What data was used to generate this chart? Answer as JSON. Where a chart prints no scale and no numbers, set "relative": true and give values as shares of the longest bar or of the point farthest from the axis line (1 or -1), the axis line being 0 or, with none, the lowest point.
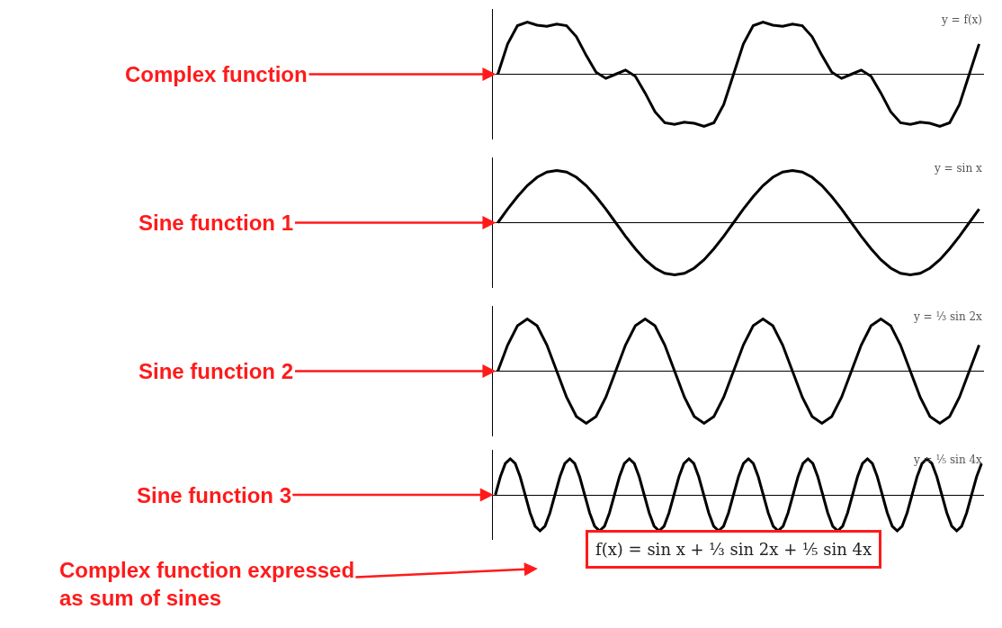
{
  "chart_data": [
    {
      "type": "line",
      "title": "y = f(x)",
      "relative": true,
      "categories": [
        null,
        null,
        null,
        null,
        null,
        null,
        null,
        null,
        null,
        null,
        null,
        null,
        null,
        null,
        null,
        null,
        null,
        null,
        null,
        null,
        null,
        null,
        null,
        null,
        null,
        null,
        null,
        null,
        null,
        null,
        null,
        null,
        null,
        null,
        null,
        null,
        null,
        null,
        null,
        null,
        null,
        null,
        null,
        null,
        null,
        null,
        null,
        null,
        null,
        null
      ],
      "series": [
        {
          "color": "#000000",
          "values": [
            0,
            0.58,
            0.93,
            1,
            0.94,
            0.92,
            0.96,
            0.93,
            0.72,
            0.36,
            0.04,
            -0.08,
            0,
            0.08,
            -0.04,
            -0.36,
            -0.72,
            -0.93,
            -0.96,
            -0.92,
            -0.94,
            -1,
            -0.93,
            -0.58,
            0,
            0.58,
            0.93,
            1,
            0.94,
            0.92,
            0.96,
            0.93,
            0.72,
            0.36,
            0.04,
            -0.08,
            0,
            0.08,
            -0.04,
            -0.36,
            -0.72,
            -0.93,
            -0.96,
            -0.92,
            -0.94,
            -1,
            -0.93,
            -0.58,
            0,
            0.58
          ]
        }
      ],
      "annotations": [
        "Complex function"
      ]
    },
    {
      "type": "line",
      "title": "y = sin x",
      "relative": true,
      "categories": [
        null,
        null,
        null,
        null,
        null,
        null,
        null,
        null,
        null,
        null,
        null,
        null,
        null,
        null,
        null,
        null,
        null,
        null,
        null,
        null,
        null,
        null,
        null,
        null,
        null,
        null,
        null,
        null,
        null,
        null,
        null,
        null,
        null,
        null,
        null,
        null,
        null,
        null,
        null,
        null,
        null,
        null,
        null,
        null,
        null,
        null,
        null,
        null,
        null,
        null
      ],
      "series": [
        {
          "color": "#000000",
          "values": [
            0,
            0.26,
            0.5,
            0.71,
            0.87,
            0.97,
            1,
            0.97,
            0.87,
            0.71,
            0.5,
            0.26,
            0,
            -0.26,
            -0.5,
            -0.71,
            -0.87,
            -0.97,
            -1,
            -0.97,
            -0.87,
            -0.71,
            -0.5,
            -0.26,
            0,
            0.26,
            0.5,
            0.71,
            0.87,
            0.97,
            1,
            0.97,
            0.87,
            0.71,
            0.5,
            0.26,
            0,
            -0.26,
            -0.5,
            -0.71,
            -0.87,
            -0.97,
            -1,
            -0.97,
            -0.87,
            -0.71,
            -0.5,
            -0.26,
            0,
            0.26
          ]
        }
      ],
      "annotations": [
        "Sine function 1"
      ]
    },
    {
      "type": "line",
      "title": "y = ⅓ sin 2x",
      "relative": true,
      "categories": [
        null,
        null,
        null,
        null,
        null,
        null,
        null,
        null,
        null,
        null,
        null,
        null,
        null,
        null,
        null,
        null,
        null,
        null,
        null,
        null,
        null,
        null,
        null,
        null,
        null,
        null,
        null,
        null,
        null,
        null,
        null,
        null,
        null,
        null,
        null,
        null,
        null,
        null,
        null,
        null,
        null,
        null,
        null,
        null,
        null,
        null,
        null,
        null,
        null,
        null
      ],
      "series": [
        {
          "color": "#000000",
          "values": [
            0,
            0.5,
            0.87,
            1,
            0.87,
            0.5,
            0,
            -0.5,
            -0.87,
            -1,
            -0.87,
            -0.5,
            0,
            0.5,
            0.87,
            1,
            0.87,
            0.5,
            0,
            -0.5,
            -0.87,
            -1,
            -0.87,
            -0.5,
            0,
            0.5,
            0.87,
            1,
            0.87,
            0.5,
            0,
            -0.5,
            -0.87,
            -1,
            -0.87,
            -0.5,
            0,
            0.5,
            0.87,
            1,
            0.87,
            0.5,
            0,
            -0.5,
            -0.87,
            -1,
            -0.87,
            -0.5,
            0,
            0.5
          ]
        }
      ],
      "annotations": [
        "Sine function 2"
      ]
    },
    {
      "type": "line",
      "title": "y = ⅕ sin 4x",
      "relative": true,
      "categories": [
        null,
        null,
        null,
        null,
        null,
        null,
        null,
        null,
        null,
        null,
        null,
        null,
        null,
        null,
        null,
        null,
        null,
        null,
        null,
        null,
        null,
        null,
        null,
        null,
        null,
        null,
        null,
        null,
        null,
        null,
        null,
        null,
        null,
        null,
        null,
        null,
        null,
        null,
        null,
        null,
        null,
        null,
        null,
        null,
        null,
        null,
        null,
        null,
        null,
        null,
        null,
        null,
        null,
        null,
        null,
        null,
        null,
        null,
        null,
        null,
        null,
        null,
        null,
        null,
        null,
        null,
        null,
        null,
        null,
        null,
        null,
        null,
        null,
        null,
        null,
        null,
        null,
        null,
        null,
        null,
        null,
        null,
        null,
        null,
        null,
        null,
        null,
        null,
        null,
        null,
        null,
        null,
        null,
        null,
        null,
        null,
        null,
        null,
        null
      ],
      "series": [
        {
          "color": "#000000",
          "values": [
            0,
            0.5,
            0.87,
            1,
            0.87,
            0.5,
            0,
            -0.5,
            -0.87,
            -1,
            -0.87,
            -0.5,
            0,
            0.5,
            0.87,
            1,
            0.87,
            0.5,
            0,
            -0.5,
            -0.87,
            -1,
            -0.87,
            -0.5,
            0,
            0.5,
            0.87,
            1,
            0.87,
            0.5,
            0,
            -0.5,
            -0.87,
            -1,
            -0.87,
            -0.5,
            0,
            0.5,
            0.87,
            1,
            0.87,
            0.5,
            0,
            -0.5,
            -0.87,
            -1,
            -0.87,
            -0.5,
            0,
            0.5,
            0.87,
            1,
            0.87,
            0.5,
            0,
            -0.5,
            -0.87,
            -1,
            -0.87,
            -0.5,
            0,
            0.5,
            0.87,
            1,
            0.87,
            0.5,
            0,
            -0.5,
            -0.87,
            -1,
            -0.87,
            -0.5,
            0,
            0.5,
            0.87,
            1,
            0.87,
            0.5,
            0,
            -0.5,
            -0.87,
            -1,
            -0.87,
            -0.5,
            0,
            0.5,
            0.87,
            1,
            0.87,
            0.5,
            0,
            -0.5,
            -0.87,
            -1,
            -0.87,
            -0.5,
            0,
            0.5,
            0.87
          ]
        }
      ],
      "annotations": [
        "Sine function 3",
        "Complex function expressed as sum of sines",
        "f(x) = sin x + ⅓ sin 2x + ⅕ sin 4x"
      ]
    }
  ]
}
